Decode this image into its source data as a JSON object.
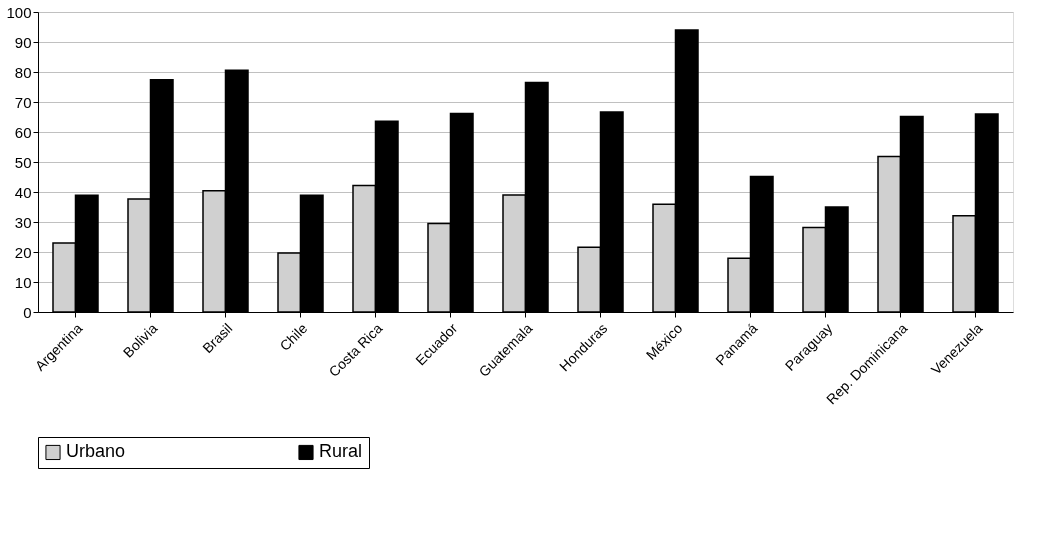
{
  "chart_data": {
    "type": "bar",
    "categories": [
      "Argentina",
      "Bolivia",
      "Brasil",
      "Chile",
      "Costa Rica",
      "Ecuador",
      "Guatemala",
      "Honduras",
      "México",
      "Panamá",
      "Paraguay",
      "Rep. Dominicana",
      "Venezuela"
    ],
    "series": [
      {
        "name": "Urbano",
        "color": "#d0d0d0",
        "values": [
          23.0,
          37.7,
          40.4,
          19.7,
          42.2,
          29.5,
          39.0,
          21.6,
          35.9,
          17.9,
          28.2,
          51.8,
          32.1
        ]
      },
      {
        "name": "Rural",
        "color": "#000000",
        "values": [
          38.9,
          77.4,
          80.6,
          38.9,
          63.6,
          66.2,
          76.5,
          66.7,
          94.0,
          45.2,
          35.0,
          65.2,
          66.0
        ]
      }
    ],
    "ylim": [
      0,
      100
    ],
    "yticks": [
      0,
      10,
      20,
      30,
      40,
      50,
      60,
      70,
      80,
      90,
      100
    ],
    "grid": "y",
    "legend": "bottom"
  }
}
